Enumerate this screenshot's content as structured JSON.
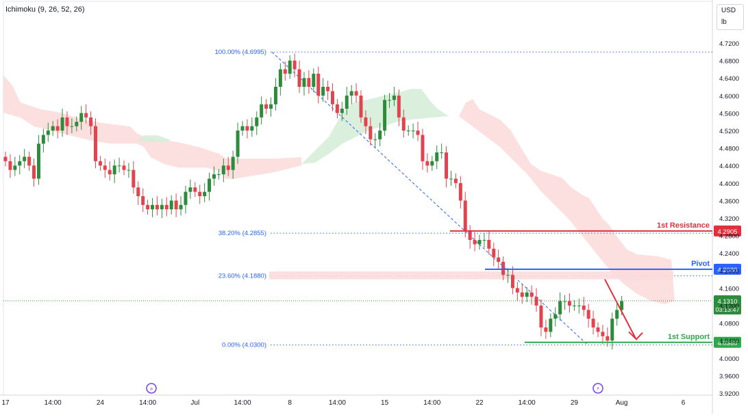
{
  "indicator_label": "Ichimoku (9, 26, 52, 26)",
  "currency": "USD",
  "unit": "lb",
  "colors": {
    "up": "#2e8b3c",
    "down": "#e0454f",
    "cloud_bull": "#d6eed9",
    "cloud_bear": "#fcdcdc",
    "fib_line": "#2962ff",
    "resistance": "#e0303c",
    "pivot": "#2962ff",
    "support": "#2ea84a",
    "arrow": "#e0303c"
  },
  "chart_data": {
    "type": "candlestick",
    "y_axis": {
      "min": 3.92,
      "max": 4.73,
      "ticks": [
        "4.7200",
        "4.6800",
        "4.6400",
        "4.6000",
        "4.5600",
        "4.5200",
        "4.4800",
        "4.4400",
        "4.4000",
        "4.3600",
        "4.3200",
        "4.2800",
        "4.2400",
        "4.2000",
        "4.1600",
        "4.1200",
        "4.0800",
        "4.0400",
        "4.0000",
        "3.9600",
        "3.9200"
      ]
    },
    "x_axis": {
      "ticks": [
        {
          "label": "17",
          "i": 0
        },
        {
          "label": "14:00",
          "i": 10
        },
        {
          "label": "24",
          "i": 20
        },
        {
          "label": "14:00",
          "i": 30
        },
        {
          "label": "Jul",
          "i": 40
        },
        {
          "label": "14:00",
          "i": 50
        },
        {
          "label": "8",
          "i": 60
        },
        {
          "label": "14:00",
          "i": 70
        },
        {
          "label": "15",
          "i": 80
        },
        {
          "label": "14:00",
          "i": 90
        },
        {
          "label": "22",
          "i": 100
        },
        {
          "label": "14:00",
          "i": 110
        },
        {
          "label": "29",
          "i": 120
        },
        {
          "label": "Aug",
          "i": 130
        },
        {
          "label": "6",
          "i": 143
        }
      ]
    },
    "candles_close": [
      4.45,
      4.43,
      4.44,
      4.45,
      4.46,
      4.44,
      4.41,
      4.49,
      4.51,
      4.52,
      4.53,
      4.52,
      4.55,
      4.53,
      4.53,
      4.54,
      4.56,
      4.55,
      4.53,
      4.45,
      4.44,
      4.43,
      4.42,
      4.44,
      4.44,
      4.43,
      4.43,
      4.39,
      4.37,
      4.35,
      4.34,
      4.35,
      4.34,
      4.35,
      4.34,
      4.36,
      4.34,
      4.35,
      4.38,
      4.39,
      4.38,
      4.37,
      4.38,
      4.41,
      4.42,
      4.42,
      4.44,
      4.43,
      4.46,
      4.52,
      4.53,
      4.52,
      4.53,
      4.55,
      4.58,
      4.57,
      4.58,
      4.62,
      4.66,
      4.65,
      4.68,
      4.66,
      4.62,
      4.64,
      4.62,
      4.65,
      4.6,
      4.62,
      4.61,
      4.58,
      4.56,
      4.57,
      4.6,
      4.61,
      4.6,
      4.55,
      4.53,
      4.5,
      4.5,
      4.52,
      4.59,
      4.59,
      4.6,
      4.55,
      4.52,
      4.52,
      4.52,
      4.51,
      4.45,
      4.44,
      4.45,
      4.47,
      4.47,
      4.41,
      4.41,
      4.4,
      4.36,
      4.29,
      4.27,
      4.26,
      4.27,
      4.27,
      4.25,
      4.23,
      4.22,
      4.19,
      4.19,
      4.16,
      4.15,
      4.14,
      4.15,
      4.14,
      4.12,
      4.07,
      4.06,
      4.09,
      4.1,
      4.13,
      4.13,
      4.12,
      4.12,
      4.12,
      4.11,
      4.09,
      4.07,
      4.06,
      4.05,
      4.04,
      4.09,
      4.11,
      4.13
    ],
    "annotations": {
      "fib_levels": [
        {
          "label": "100.00% (4.6995)",
          "value": 4.6995
        },
        {
          "label": "38.20% (4.2855)",
          "value": 4.2855
        },
        {
          "label": "23.60% (4.1880)",
          "value": 4.188
        },
        {
          "label": "0.00% (4.0300)",
          "value": 4.03
        }
      ],
      "resistance": {
        "label": "1st Resistance",
        "value": 4.2905,
        "tag": "4.2905"
      },
      "pivot": {
        "label": "Pivot",
        "value": 4.203,
        "tag": "4.2030"
      },
      "support": {
        "label": "1st Support",
        "value": 4.036,
        "tag": "4.0360"
      },
      "current": {
        "value": 4.131,
        "tag": "4.1310",
        "countdown": "03:13:47"
      }
    }
  }
}
